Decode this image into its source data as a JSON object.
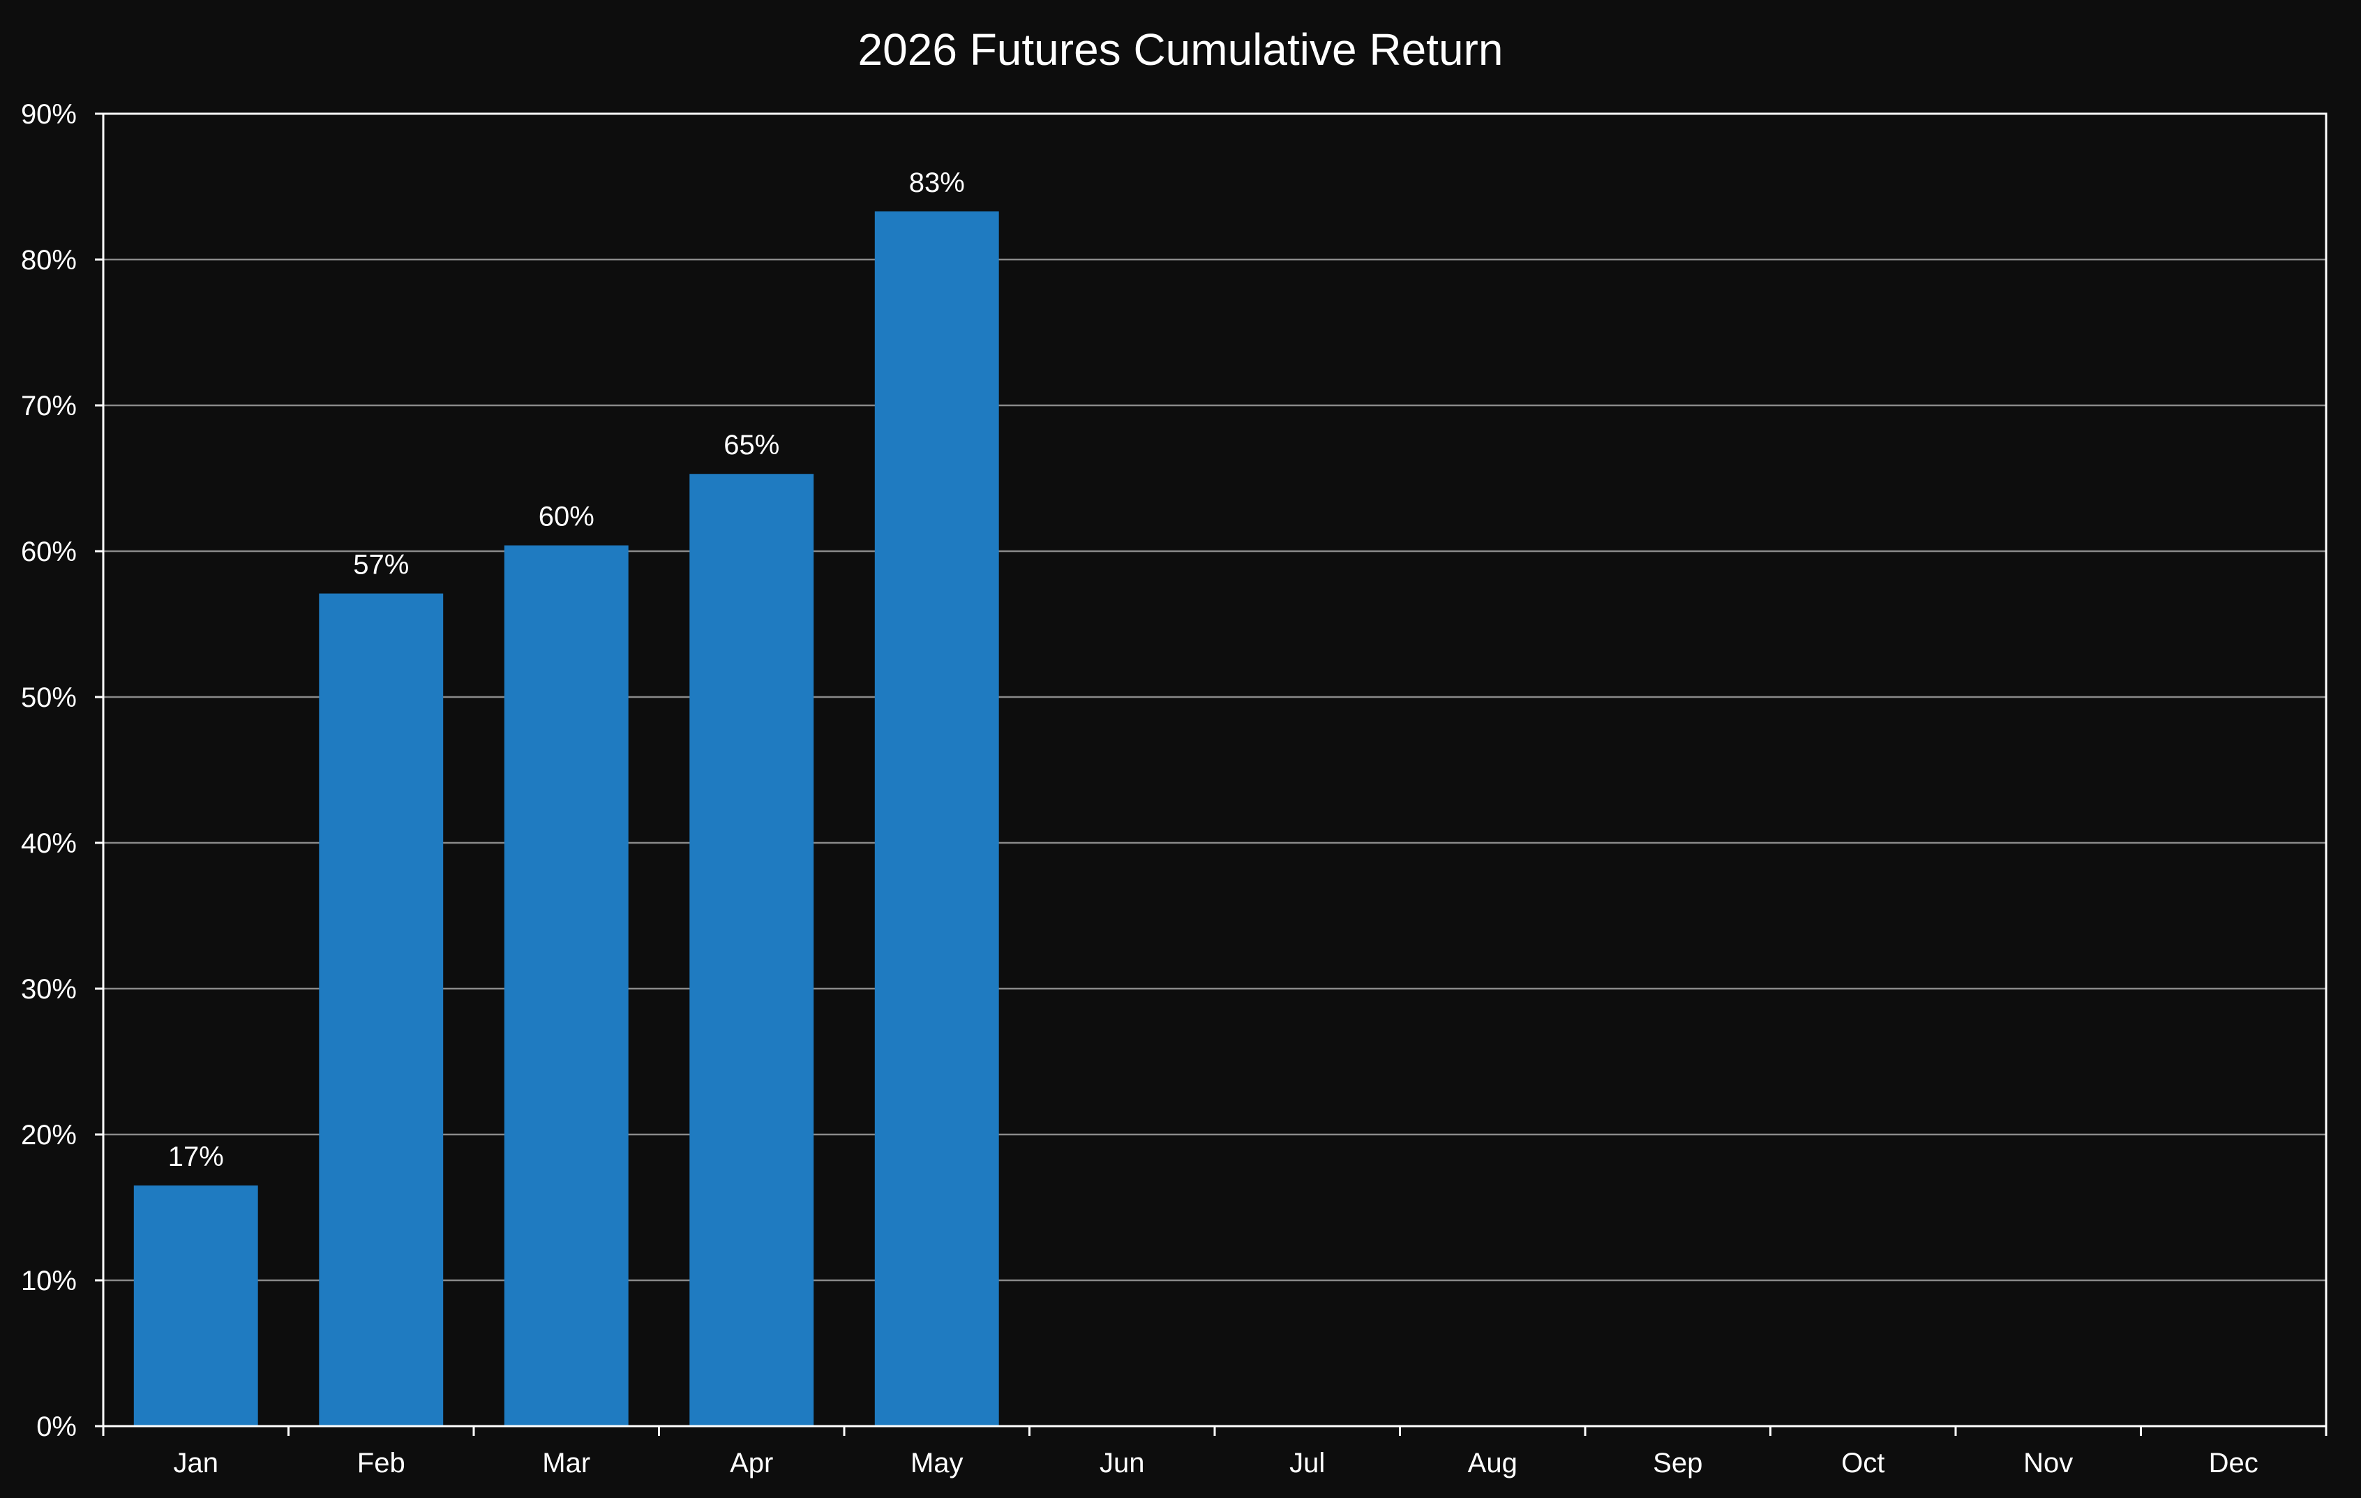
{
  "chart_data": {
    "type": "bar",
    "title": "2026 Futures Cumulative Return",
    "xlabel": "",
    "ylabel": "",
    "categories": [
      "Jan",
      "Feb",
      "Mar",
      "Apr",
      "May",
      "Jun",
      "Jul",
      "Aug",
      "Sep",
      "Oct",
      "Nov",
      "Dec"
    ],
    "values": [
      16.5,
      57.1,
      60.4,
      65.3,
      83.3,
      null,
      null,
      null,
      null,
      null,
      null,
      null
    ],
    "data_labels": [
      "17%",
      "57%",
      "60%",
      "65%",
      "83%",
      "",
      "",
      "",
      "",
      "",
      "",
      ""
    ],
    "ylim": [
      0,
      90
    ],
    "yticks": [
      0,
      10,
      20,
      30,
      40,
      50,
      60,
      70,
      80,
      90
    ],
    "ytick_labels": [
      "0%",
      "10%",
      "20%",
      "30%",
      "40%",
      "50%",
      "60%",
      "70%",
      "80%",
      "90%"
    ],
    "grid": "horizontal",
    "legend": "none",
    "colors": {
      "bar": "#1f7bc1",
      "background": "#0d0d0d",
      "text": "#ffffff",
      "grid": "#8a8a8a"
    }
  }
}
